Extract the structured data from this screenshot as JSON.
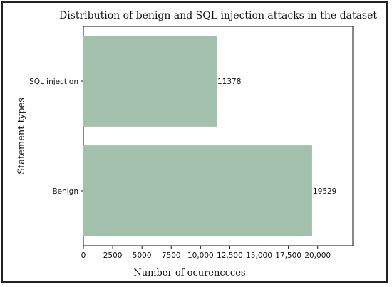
{
  "chart_data": {
    "type": "bar",
    "orientation": "horizontal",
    "title": "Distribution of benign and SQL injection attacks in the dataset",
    "xlabel": "Number of ocurenccces",
    "ylabel": "Statement types",
    "categories": [
      "SQL injection",
      "Benign"
    ],
    "values": [
      11378,
      19529
    ],
    "data_labels": [
      "11378",
      "19529"
    ],
    "xlim": [
      0,
      23000
    ],
    "xticks": [
      0,
      2500,
      5000,
      7500,
      10000,
      12500,
      15000,
      17500,
      20000
    ],
    "xtick_labels": [
      "0",
      "2500",
      "5000",
      "7500",
      "10,000",
      "12,500",
      "15,000",
      "17,500",
      "20,000"
    ],
    "bar_color": "#a3c1ad",
    "grid": false
  }
}
